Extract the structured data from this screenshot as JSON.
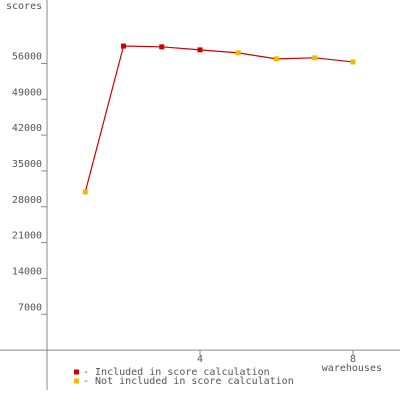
{
  "chart_data": {
    "type": "line",
    "x_label": "warehouses",
    "y_label": "scores",
    "x": [
      1,
      2,
      3,
      4,
      5,
      6,
      7,
      8
    ],
    "series": [
      {
        "name": "- Included in score calculation",
        "color": "#cc0000",
        "values": [
          null,
          59400,
          59250,
          58660,
          null,
          null,
          null,
          null
        ]
      },
      {
        "name": "- Not included in score calculation",
        "color": "#f0b800",
        "values": [
          30900,
          null,
          null,
          null,
          58070,
          56900,
          57100,
          56300
        ]
      }
    ],
    "line_color": "#cc0000",
    "xlim": [
      -1.23,
      9.23
    ],
    "xticks": [
      4,
      8
    ],
    "ylim": [
      -7800,
      68400
    ],
    "yticks": [
      7000,
      14000,
      21000,
      28000,
      35000,
      42000,
      49000,
      56000
    ]
  }
}
